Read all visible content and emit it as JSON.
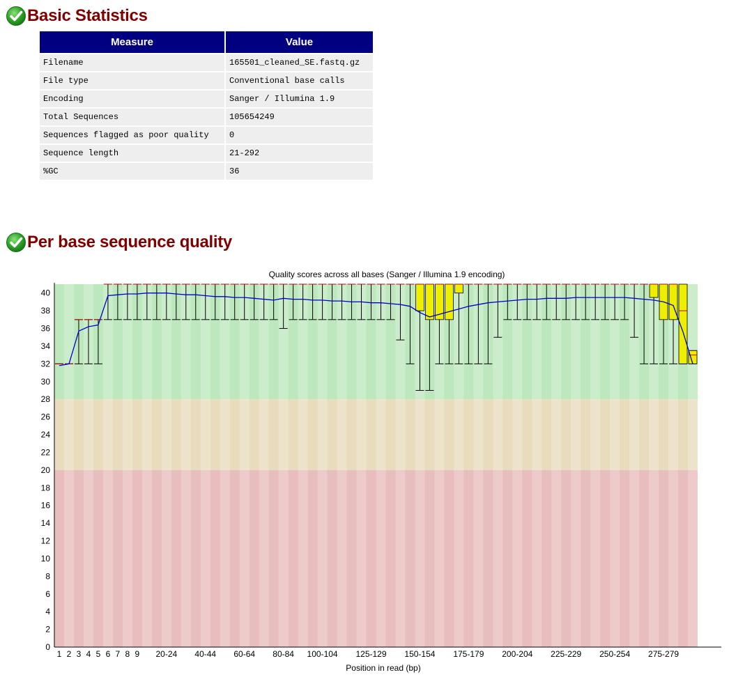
{
  "basic_statistics": {
    "status_icon": "check-ok-icon",
    "title": "Basic Statistics",
    "headers": [
      "Measure",
      "Value"
    ],
    "rows": [
      [
        "Filename",
        "165501_cleaned_SE.fastq.gz"
      ],
      [
        "File type",
        "Conventional base calls"
      ],
      [
        "Encoding",
        "Sanger / Illumina 1.9"
      ],
      [
        "Total Sequences",
        "105654249"
      ],
      [
        "Sequences flagged as poor quality",
        "0"
      ],
      [
        "Sequence length",
        "21-292"
      ],
      [
        "%GC",
        "36"
      ]
    ]
  },
  "per_base_quality": {
    "status_icon": "check-ok-icon",
    "title": "Per base sequence quality"
  },
  "colors": {
    "heading": "#800000",
    "table_header_bg": "#000080",
    "table_cell_bg": "#eeeeee",
    "zone_good": "#bde8bd",
    "zone_warn": "#e8dcbd",
    "zone_bad": "#e8bdbd",
    "box": "#eeee00",
    "mean_line": "#0000cc",
    "median": "#cc0000"
  },
  "chart_data": {
    "type": "box",
    "title": "Quality scores across all bases (Sanger / Illumina 1.9 encoding)",
    "xlabel": "Position in read (bp)",
    "ylabel": "",
    "ylim": [
      0,
      41
    ],
    "yticks": [
      0,
      2,
      4,
      6,
      8,
      10,
      12,
      14,
      16,
      18,
      20,
      22,
      24,
      26,
      28,
      30,
      32,
      34,
      36,
      38,
      40
    ],
    "zones": [
      {
        "name": "good",
        "from": 28,
        "to": 41
      },
      {
        "name": "warning",
        "from": 20,
        "to": 28
      },
      {
        "name": "poor",
        "from": 0,
        "to": 20
      }
    ],
    "categories": [
      "1",
      "2",
      "3",
      "4",
      "5",
      "6",
      "7",
      "8",
      "9",
      "10-14",
      "15-19",
      "20-24",
      "25-29",
      "30-34",
      "35-39",
      "40-44",
      "45-49",
      "50-54",
      "55-59",
      "60-64",
      "65-69",
      "70-74",
      "75-79",
      "80-84",
      "85-89",
      "90-94",
      "95-99",
      "100-104",
      "105-109",
      "110-114",
      "115-119",
      "120-124",
      "125-129",
      "130-134",
      "135-139",
      "140-144",
      "145-149",
      "150-154",
      "155-159",
      "160-164",
      "165-169",
      "170-174",
      "175-179",
      "180-184",
      "185-189",
      "190-194",
      "195-199",
      "200-204",
      "205-209",
      "210-214",
      "215-219",
      "220-224",
      "225-229",
      "230-234",
      "235-239",
      "240-244",
      "245-249",
      "250-254",
      "255-259",
      "260-264",
      "265-269",
      "270-274",
      "275-279",
      "280-284",
      "285-289",
      "290-292"
    ],
    "shown_xticks": [
      "1",
      "2",
      "3",
      "4",
      "5",
      "6",
      "7",
      "8",
      "9",
      "20-24",
      "40-44",
      "60-64",
      "80-84",
      "100-104",
      "125-129",
      "150-154",
      "175-179",
      "200-204",
      "225-229",
      "250-254",
      "275-279"
    ],
    "median": [
      32,
      32,
      37,
      37,
      37,
      41,
      41,
      41,
      41,
      41,
      41,
      41,
      41,
      41,
      41,
      41,
      41,
      41,
      41,
      41,
      41,
      41,
      41,
      41,
      41,
      41,
      41,
      41,
      41,
      41,
      41,
      41,
      41,
      41,
      41,
      41,
      41,
      41,
      41,
      41,
      41,
      41,
      41,
      41,
      41,
      41,
      41,
      41,
      41,
      41,
      41,
      41,
      41,
      41,
      41,
      41,
      41,
      41,
      41,
      41,
      41,
      41,
      41,
      41,
      38,
      33
    ],
    "q1": [
      32,
      32,
      37,
      37,
      37,
      41,
      41,
      41,
      41,
      41,
      41,
      41,
      41,
      41,
      41,
      41,
      41,
      41,
      41,
      41,
      41,
      41,
      41,
      41,
      41,
      41,
      41,
      41,
      41,
      41,
      41,
      41,
      41,
      41,
      41,
      41,
      41,
      38,
      37,
      37,
      37,
      40,
      41,
      41,
      41,
      41,
      41,
      41,
      41,
      41,
      41,
      41,
      41,
      41,
      41,
      41,
      41,
      41,
      41,
      41,
      41,
      39.5,
      37,
      37,
      32,
      32
    ],
    "q3": [
      32,
      32,
      37,
      37,
      37,
      41,
      41,
      41,
      41,
      41,
      41,
      41,
      41,
      41,
      41,
      41,
      41,
      41,
      41,
      41,
      41,
      41,
      41,
      41,
      41,
      41,
      41,
      41,
      41,
      41,
      41,
      41,
      41,
      41,
      41,
      41,
      41,
      41,
      41,
      41,
      41,
      41,
      41,
      41,
      41,
      41,
      41,
      41,
      41,
      41,
      41,
      41,
      41,
      41,
      41,
      41,
      41,
      41,
      41,
      41,
      41,
      41,
      41,
      41,
      41,
      33.5
    ],
    "low": [
      32,
      32,
      32,
      32,
      32,
      37,
      37,
      37,
      37,
      37,
      37,
      37,
      37,
      37,
      37,
      37,
      37,
      37,
      37,
      37,
      37,
      37,
      37,
      36,
      37,
      37,
      37,
      37,
      37,
      37,
      37,
      37,
      37,
      37,
      37,
      34.7,
      32,
      29,
      29,
      32,
      32,
      32,
      32,
      32,
      32,
      35,
      37,
      37,
      37,
      37,
      37,
      37,
      37,
      37,
      37,
      37,
      37,
      37,
      37,
      35,
      32,
      32,
      32,
      32,
      32,
      32
    ],
    "high": [
      32,
      32,
      37,
      37,
      37,
      41,
      41,
      41,
      41,
      41,
      41,
      41,
      41,
      41,
      41,
      41,
      41,
      41,
      41,
      41,
      41,
      41,
      41,
      41,
      41,
      41,
      41,
      41,
      41,
      41,
      41,
      41,
      41,
      41,
      41,
      41,
      41,
      41,
      41,
      41,
      41,
      41,
      41,
      41,
      41,
      41,
      41,
      41,
      41,
      41,
      41,
      41,
      41,
      41,
      41,
      41,
      41,
      41,
      41,
      41,
      41,
      41,
      41,
      41,
      39.5,
      33.5
    ],
    "mean": [
      31.8,
      32,
      35.7,
      36.2,
      36.4,
      39.7,
      39.8,
      39.9,
      39.9,
      40,
      40,
      40,
      39.9,
      39.8,
      39.8,
      39.7,
      39.6,
      39.6,
      39.5,
      39.5,
      39.4,
      39.3,
      39.2,
      39.4,
      39.3,
      39.3,
      39.2,
      39.2,
      39.1,
      39.1,
      39,
      39,
      38.9,
      38.9,
      38.8,
      38.7,
      38.5,
      37.8,
      37.3,
      37.6,
      37.9,
      38.2,
      38.5,
      38.7,
      38.9,
      39,
      39.1,
      39.2,
      39.3,
      39.3,
      39.4,
      39.4,
      39.4,
      39.5,
      39.5,
      39.5,
      39.5,
      39.5,
      39.5,
      39.4,
      39.3,
      39.2,
      39,
      38.6,
      35.6,
      32
    ]
  }
}
